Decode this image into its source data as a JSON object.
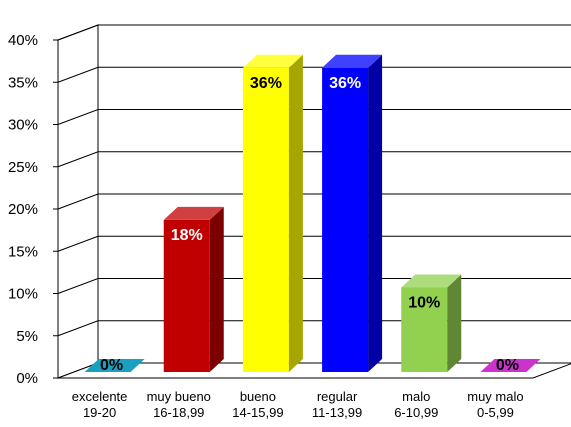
{
  "chart_data": {
    "type": "bar",
    "categories": [
      [
        "excelente",
        "19-20"
      ],
      [
        "muy bueno",
        "16-18,99"
      ],
      [
        "bueno",
        "14-15,99"
      ],
      [
        "regular",
        "11-13,99"
      ],
      [
        "malo",
        "6-10,99"
      ],
      [
        "muy malo",
        "0-5,99"
      ]
    ],
    "values": [
      0,
      18,
      36,
      36,
      10,
      0
    ],
    "data_labels": [
      "0%",
      "18%",
      "36%",
      "36%",
      "10%",
      "0%"
    ],
    "colors": [
      "#1aa0c0",
      "#c00000",
      "#ffff00",
      "#0000ff",
      "#92d050",
      "#cc33cc"
    ],
    "label_colors": [
      "#000000",
      "#ffffff",
      "#000000",
      "#ffffff",
      "#000000",
      "#000000"
    ],
    "ylim": [
      0,
      40
    ],
    "yticks": [
      "0%",
      "5%",
      "10%",
      "15%",
      "20%",
      "25%",
      "30%",
      "35%",
      "40%"
    ],
    "grid": true,
    "legend": "none",
    "style": "3d-bar",
    "title": "",
    "xlabel": "",
    "ylabel": ""
  }
}
